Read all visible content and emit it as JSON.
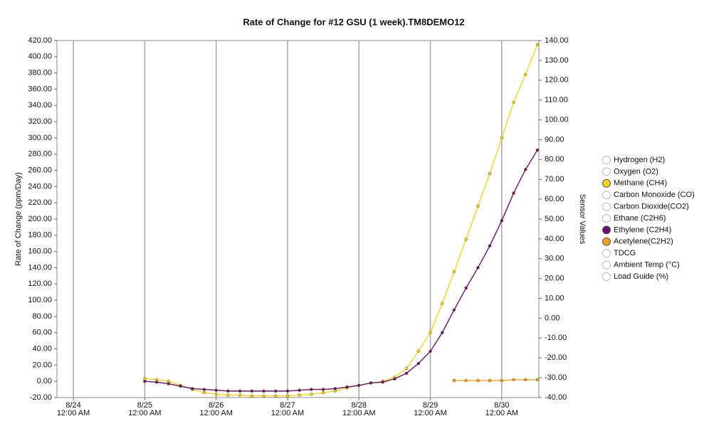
{
  "chart_data": {
    "type": "line",
    "title": "Rate of Change for #12 GSU (1 week).TM8DEMO12",
    "y_label": "Rate of Change (ppm/Day)",
    "y2_label": "Sensor Values",
    "xlim": [
      -0.23,
      6.52
    ],
    "xticks": [
      {
        "value": 0,
        "label": [
          "8/24",
          "12:00 AM"
        ]
      },
      {
        "value": 1,
        "label": [
          "8/25",
          "12:00 AM"
        ]
      },
      {
        "value": 2,
        "label": [
          "8/26",
          "12:00 AM"
        ]
      },
      {
        "value": 3,
        "label": [
          "8/27",
          "12:00 AM"
        ]
      },
      {
        "value": 4,
        "label": [
          "8/28",
          "12:00 AM"
        ]
      },
      {
        "value": 5,
        "label": [
          "8/29",
          "12:00 AM"
        ]
      },
      {
        "value": 6,
        "label": [
          "8/30",
          "12:00 AM"
        ]
      }
    ],
    "ylim": [
      -20,
      420
    ],
    "yticks": [
      {
        "value": -20,
        "label": "-20.00"
      },
      {
        "value": 0,
        "label": "0.00"
      },
      {
        "value": 20,
        "label": "20.00"
      },
      {
        "value": 40,
        "label": "40.00"
      },
      {
        "value": 60,
        "label": "60.00"
      },
      {
        "value": 80,
        "label": "80.00"
      },
      {
        "value": 100,
        "label": "100.00"
      },
      {
        "value": 120,
        "label": "120.00"
      },
      {
        "value": 140,
        "label": "140.00"
      },
      {
        "value": 160,
        "label": "160.00"
      },
      {
        "value": 180,
        "label": "180.00"
      },
      {
        "value": 200,
        "label": "200.00"
      },
      {
        "value": 220,
        "label": "220.00"
      },
      {
        "value": 240,
        "label": "240.00"
      },
      {
        "value": 260,
        "label": "260.00"
      },
      {
        "value": 280,
        "label": "280.00"
      },
      {
        "value": 300,
        "label": "300.00"
      },
      {
        "value": 320,
        "label": "320.00"
      },
      {
        "value": 340,
        "label": "340.00"
      },
      {
        "value": 360,
        "label": "360.00"
      },
      {
        "value": 380,
        "label": "380.00"
      },
      {
        "value": 400,
        "label": "400.00"
      },
      {
        "value": 420,
        "label": "420.00"
      }
    ],
    "y2lim": [
      -40,
      140
    ],
    "y2ticks": [
      {
        "value": -40,
        "label": "-40.00"
      },
      {
        "value": -30,
        "label": "-30.00"
      },
      {
        "value": -20,
        "label": "-20.00"
      },
      {
        "value": -10,
        "label": "-10.00"
      },
      {
        "value": 0,
        "label": "0.00"
      },
      {
        "value": 10,
        "label": "10.00"
      },
      {
        "value": 20,
        "label": "20.00"
      },
      {
        "value": 30,
        "label": "30.00"
      },
      {
        "value": 40,
        "label": "40.00"
      },
      {
        "value": 50,
        "label": "50.00"
      },
      {
        "value": 60,
        "label": "60.00"
      },
      {
        "value": 70,
        "label": "70.00"
      },
      {
        "value": 80,
        "label": "80.00"
      },
      {
        "value": 90,
        "label": "90.00"
      },
      {
        "value": 100,
        "label": "100.00"
      },
      {
        "value": 110,
        "label": "110.00"
      },
      {
        "value": 120,
        "label": "120.00"
      },
      {
        "value": 130,
        "label": "130.00"
      },
      {
        "value": 140,
        "label": "140.00"
      }
    ],
    "grid": "x",
    "legend": "right",
    "series": [
      {
        "name": "Hydrogen (H2)",
        "x": [],
        "values": []
      },
      {
        "name": "Oxygen (O2)",
        "x": [],
        "values": []
      },
      {
        "name": "Methane (CH4)",
        "color": "#f3d31a",
        "x": [
          1.0,
          1.167,
          1.333,
          1.5,
          1.667,
          1.833,
          2.0,
          2.167,
          2.333,
          2.5,
          2.667,
          2.833,
          3.0,
          3.167,
          3.333,
          3.5,
          3.667,
          3.833,
          4.0,
          4.167,
          4.333,
          4.5,
          4.667,
          4.833,
          5.0,
          5.167,
          5.333,
          5.5,
          5.667,
          5.833,
          6.0,
          6.167,
          6.333,
          6.5
        ],
        "values": [
          3,
          2,
          0,
          -5,
          -10,
          -14,
          -16,
          -17,
          -17,
          -18,
          -18,
          -18,
          -18,
          -17,
          -16,
          -14,
          -12,
          -8,
          -5,
          -2,
          0,
          5,
          16,
          37,
          60,
          96,
          135,
          175,
          216,
          256,
          300,
          344,
          378,
          415
        ]
      },
      {
        "name": "Carbon Monoxide (CO)",
        "x": [],
        "values": []
      },
      {
        "name": "Carbon Dioxide(CO2)",
        "x": [],
        "values": []
      },
      {
        "name": "Ethane (C2H6)",
        "x": [],
        "values": []
      },
      {
        "name": "Ethylene (C2H4)",
        "color": "#6a0f7a",
        "x": [
          1.0,
          1.167,
          1.333,
          1.5,
          1.667,
          1.833,
          2.0,
          2.167,
          2.333,
          2.5,
          2.667,
          2.833,
          3.0,
          3.167,
          3.333,
          3.5,
          3.667,
          3.833,
          4.0,
          4.167,
          4.333,
          4.5,
          4.667,
          4.833,
          5.0,
          5.167,
          5.333,
          5.5,
          5.667,
          5.833,
          6.0,
          6.167,
          6.333,
          6.5
        ],
        "values": [
          0,
          -1,
          -3,
          -6,
          -9,
          -10,
          -11,
          -12,
          -12,
          -12,
          -12,
          -12,
          -12,
          -11,
          -10,
          -10,
          -9,
          -7,
          -5,
          -2,
          -1,
          3,
          10,
          22,
          37,
          60,
          88,
          115,
          140,
          167,
          198,
          232,
          261,
          285
        ]
      },
      {
        "name": "Acetylene(C2H2)",
        "color": "#f0a020",
        "x": [
          5.333,
          5.5,
          5.667,
          5.833,
          6.0,
          6.167,
          6.333,
          6.5
        ],
        "values": [
          1,
          1,
          1,
          1,
          1,
          2,
          2,
          2
        ]
      },
      {
        "name": "TDCG",
        "x": [],
        "values": []
      },
      {
        "name": "Ambient Temp (°C)",
        "x": [],
        "values": []
      },
      {
        "name": "Load Guide (%)",
        "x": [],
        "values": []
      }
    ]
  }
}
